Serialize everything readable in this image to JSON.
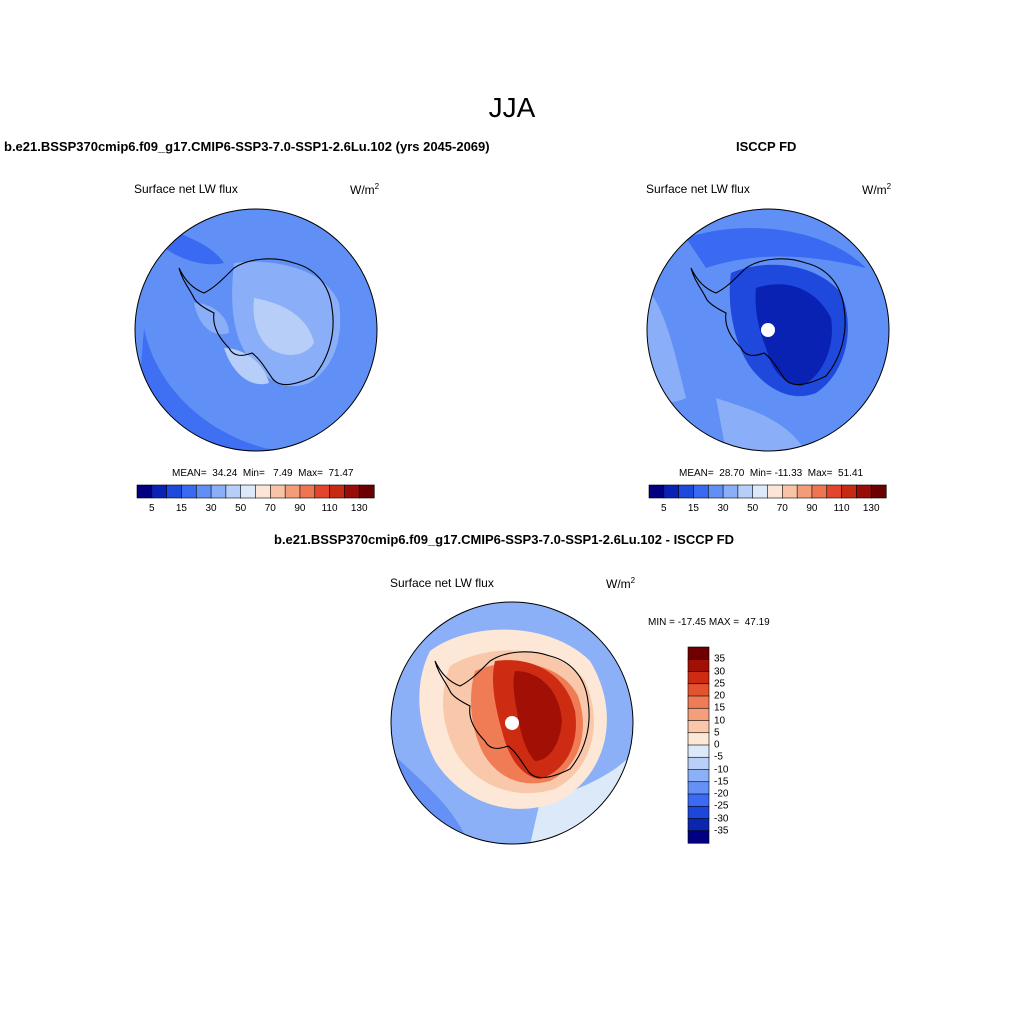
{
  "page": {
    "title": "JJA",
    "diff_title": "b.e21.BSSP370cmip6.f09_g17.CMIP6-SSP3-7.0-SSP1-2.6Lu.102 - ISCCP FD"
  },
  "panels": [
    {
      "title": "b.e21.BSSP370cmip6.f09_g17.CMIP6-SSP3-7.0-SSP1-2.6Lu.102 (yrs 2045-2069)",
      "variable": "Surface net LW flux",
      "units": "W/m",
      "units_exp": "2",
      "stats": "MEAN=  34.24  Min=   7.49  Max=  71.47"
    },
    {
      "title": "ISCCP FD",
      "variable": "Surface net LW flux",
      "units": "W/m",
      "units_exp": "2",
      "stats": "MEAN=  28.70  Min= -11.33  Max=  51.41"
    },
    {
      "title": "",
      "variable": "Surface net LW flux",
      "units": "W/m",
      "units_exp": "2",
      "stats": "MIN = -17.45 MAX =  47.19"
    }
  ],
  "abs_colorbar": {
    "colors": [
      "#000080",
      "#0a22b4",
      "#1f48dc",
      "#3a6af2",
      "#6090f5",
      "#8aaef7",
      "#b7cff8",
      "#dce9f9",
      "#fde5d5",
      "#f8c3a6",
      "#f49c79",
      "#ef7451",
      "#e2452c",
      "#c52a14",
      "#980d05",
      "#6a0000"
    ],
    "tick_labels": [
      "5",
      "15",
      "30",
      "50",
      "70",
      "90",
      "110",
      "130"
    ]
  },
  "diff_colorbar": {
    "colors": [
      "#700000",
      "#a20f04",
      "#cd2c12",
      "#e2532f",
      "#f07c55",
      "#f49f7c",
      "#f9c8ab",
      "#fde8d7",
      "#dce9f9",
      "#b9cff8",
      "#8cb0f7",
      "#6590f5",
      "#3a6bf2",
      "#1d46dc",
      "#0b25b0",
      "#000080"
    ],
    "tick_labels": [
      "35",
      "30",
      "25",
      "20",
      "15",
      "10",
      "5",
      "0",
      "-5",
      "-10",
      "-15",
      "-20",
      "-25",
      "-30",
      "-35"
    ]
  },
  "colors": {
    "background": "#ffffff",
    "outline": "#000000"
  }
}
